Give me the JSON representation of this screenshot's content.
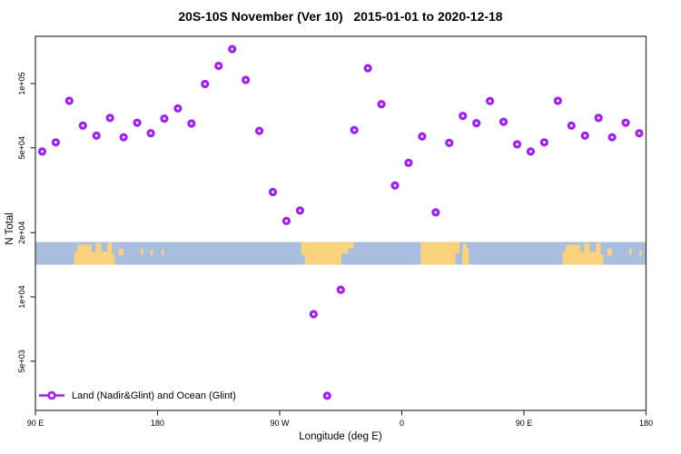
{
  "figure": {
    "background": "#ffffff",
    "border_color": "#333333"
  },
  "chart_data": {
    "type": "scatter",
    "title": "20S-10S November (Ver 10)   2015-01-01 to 2020-12-18",
    "xlabel": "Longitude (deg E)",
    "ylabel": "N Total",
    "y_scale": "log",
    "ylim": [
      2900,
      170000
    ],
    "x_axis": {
      "note": "longitude axis runs eastward from 90E, wrapping 450 degrees",
      "range_axis_deg": [
        90,
        540
      ],
      "ticks": [
        {
          "u": 90,
          "label": "90 E"
        },
        {
          "u": 180,
          "label": "180"
        },
        {
          "u": 270,
          "label": "90 W"
        },
        {
          "u": 360,
          "label": "0"
        },
        {
          "u": 450,
          "label": "90 E"
        },
        {
          "u": 540,
          "label": "180"
        }
      ]
    },
    "y_axis": {
      "ticks": [
        {
          "value": 100000,
          "label": "1e+05"
        },
        {
          "value": 50000,
          "label": "5e+04"
        },
        {
          "value": 20000,
          "label": "2e+04"
        },
        {
          "value": 10000,
          "label": "1e+04"
        },
        {
          "value": 5000,
          "label": "5e+03"
        }
      ]
    },
    "legend": {
      "label": "Land (Nadir&Glint) and Ocean (Glint)",
      "marker": "open-circle-on-line",
      "position": "bottom-left"
    },
    "series": [
      {
        "name": "Land (Nadir&Glint) and Ocean (Glint)",
        "color": "#A020F0",
        "marker": "open-circle",
        "points": [
          [
            95,
            48000
          ],
          [
            105,
            53000
          ],
          [
            115,
            83000
          ],
          [
            125,
            63500
          ],
          [
            135,
            57000
          ],
          [
            145,
            69000
          ],
          [
            155,
            56000
          ],
          [
            165,
            65500
          ],
          [
            175,
            58500
          ],
          [
            185,
            68500
          ],
          [
            195,
            76500
          ],
          [
            205,
            65000
          ],
          [
            215,
            99500
          ],
          [
            225,
            121000
          ],
          [
            235,
            145000
          ],
          [
            245,
            104000
          ],
          [
            255,
            60000
          ],
          [
            265,
            31000
          ],
          [
            275,
            22700
          ],
          [
            285,
            25400
          ],
          [
            295,
            8300
          ],
          [
            305,
            3440
          ],
          [
            315,
            10800
          ],
          [
            325,
            60500
          ],
          [
            335,
            118000
          ],
          [
            345,
            80000
          ],
          [
            355,
            33300
          ],
          [
            365,
            42500
          ],
          [
            375,
            56500
          ],
          [
            385,
            24900
          ],
          [
            395,
            52700
          ],
          [
            405,
            70500
          ],
          [
            415,
            65200
          ],
          [
            425,
            82800
          ],
          [
            435,
            66200
          ],
          [
            445,
            51900
          ],
          [
            455,
            48000
          ],
          [
            465,
            53000
          ],
          [
            475,
            83000
          ],
          [
            485,
            63500
          ],
          [
            495,
            57000
          ],
          [
            505,
            69000
          ],
          [
            515,
            56000
          ],
          [
            525,
            65500
          ],
          [
            535,
            58500
          ]
        ]
      }
    ],
    "map_band": {
      "description": "world coastline strip for latitude band 20S-10S drawn across plot",
      "ocean_color": "#A9BEDE",
      "land_color": "#FAD27C",
      "land_segments": [
        [
          118.5,
          146.5,
          0.42,
          1.0
        ],
        [
          121.0,
          131.5,
          0.12,
          0.42
        ],
        [
          134.5,
          138.5,
          0.05,
          0.42
        ],
        [
          143.0,
          146.5,
          0.04,
          0.42
        ],
        [
          146.5,
          148.5,
          0.55,
          1.0
        ],
        [
          151.5,
          154.8,
          0.3,
          0.6
        ],
        [
          167.5,
          169.5,
          0.3,
          0.55
        ],
        [
          175.0,
          176.5,
          0.35,
          0.6
        ],
        [
          183.0,
          184.5,
          0.35,
          0.6
        ],
        [
          285.9,
          288.5,
          0.0,
          0.58
        ],
        [
          288.5,
          315.5,
          0.0,
          1.0
        ],
        [
          315.5,
          320.5,
          0.0,
          0.52
        ],
        [
          320.5,
          324.5,
          0.0,
          0.28
        ],
        [
          374.0,
          399.5,
          0.0,
          1.0
        ],
        [
          399.5,
          402.5,
          0.0,
          0.5
        ],
        [
          404.5,
          409.5,
          0.3,
          1.0
        ],
        [
          405.0,
          408.0,
          0.08,
          0.3
        ],
        [
          478.5,
          506.5,
          0.42,
          1.0
        ],
        [
          481.0,
          491.5,
          0.12,
          0.42
        ],
        [
          494.5,
          498.5,
          0.05,
          0.42
        ],
        [
          503.0,
          506.5,
          0.04,
          0.42
        ],
        [
          506.5,
          508.5,
          0.55,
          1.0
        ],
        [
          511.5,
          514.8,
          0.3,
          0.6
        ],
        [
          527.5,
          529.5,
          0.3,
          0.55
        ],
        [
          535.0,
          536.5,
          0.35,
          0.6
        ]
      ]
    }
  }
}
